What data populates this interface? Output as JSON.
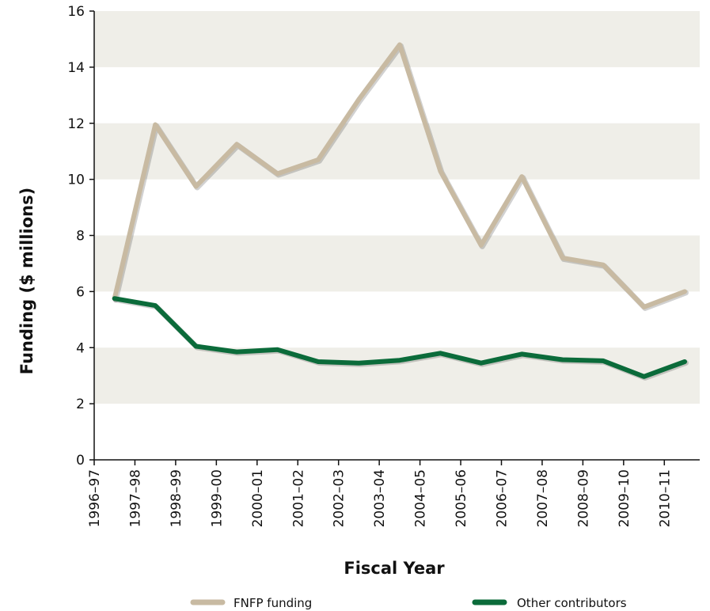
{
  "chart_data": {
    "type": "line",
    "xlabel": "Fiscal Year",
    "ylabel": "Funding ($ millions)",
    "ylim": [
      0,
      16
    ],
    "yticks": [
      0,
      2,
      4,
      6,
      8,
      10,
      12,
      14,
      16
    ],
    "categories": [
      "1996–97",
      "1997–98",
      "1998–99",
      "1999–00",
      "2000–01",
      "2001–02",
      "2002–03",
      "2003–04",
      "2004–05",
      "2005–06",
      "2006–07",
      "2007–08",
      "2008–09",
      "2009–10",
      "2010–11"
    ],
    "grid": "alternating horizontal bands",
    "legend_position": "bottom",
    "series": [
      {
        "name": "FNFP funding",
        "color": "#c8baa2",
        "values": [
          5.75,
          11.95,
          9.75,
          11.25,
          10.2,
          10.7,
          12.85,
          14.8,
          10.3,
          7.65,
          10.1,
          7.2,
          6.95,
          5.45,
          6.0
        ]
      },
      {
        "name": "Other contributors",
        "color": "#0b6b3a",
        "values": [
          5.75,
          5.5,
          4.05,
          3.85,
          3.93,
          3.5,
          3.45,
          3.55,
          3.8,
          3.45,
          3.77,
          3.57,
          3.53,
          2.97,
          3.5
        ]
      }
    ],
    "band_color": "#efeee8"
  }
}
